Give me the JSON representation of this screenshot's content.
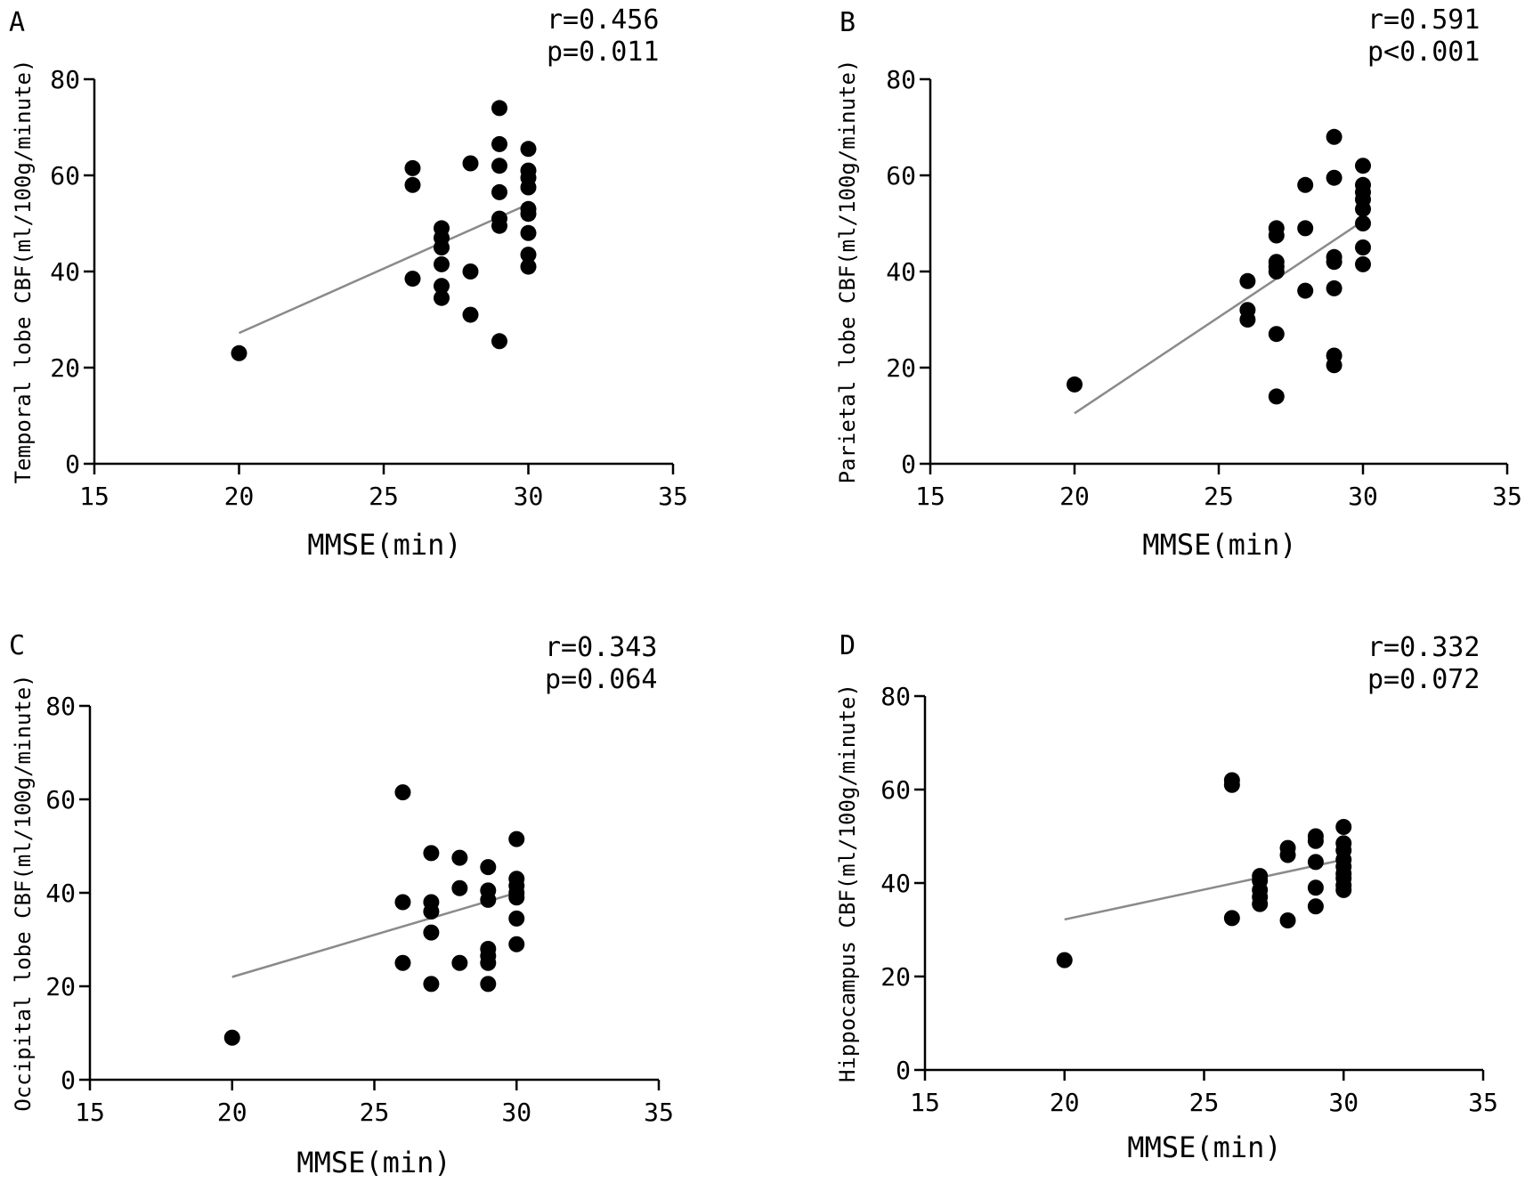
{
  "chart_data": [
    {
      "type": "scatter",
      "panel": "A",
      "stats": [
        "r=0.456",
        "p=0.011"
      ],
      "xlabel": "MMSE(min)",
      "ylabel": "Temporal lobe CBF(ml/100g/minute)",
      "xlim": [
        15,
        35
      ],
      "ylim": [
        0,
        80
      ],
      "xticks": [
        15,
        20,
        25,
        30,
        35
      ],
      "yticks": [
        0,
        20,
        40,
        60,
        80
      ],
      "fit": {
        "x": [
          20,
          30
        ],
        "y": [
          27.2,
          54
        ]
      },
      "points": [
        [
          20,
          23
        ],
        [
          26,
          61.5
        ],
        [
          26,
          58
        ],
        [
          26,
          38.5
        ],
        [
          27,
          49
        ],
        [
          27,
          47
        ],
        [
          27,
          45
        ],
        [
          27,
          41.5
        ],
        [
          27,
          37
        ],
        [
          27,
          34.5
        ],
        [
          28,
          62.5
        ],
        [
          28,
          40
        ],
        [
          28,
          31
        ],
        [
          29,
          74
        ],
        [
          29,
          66.5
        ],
        [
          29,
          62
        ],
        [
          29,
          56.5
        ],
        [
          29,
          51
        ],
        [
          29,
          49.5
        ],
        [
          29,
          25.5
        ],
        [
          30,
          65.5
        ],
        [
          30,
          61
        ],
        [
          30,
          59.5
        ],
        [
          30,
          57.5
        ],
        [
          30,
          53
        ],
        [
          30,
          52
        ],
        [
          30,
          48
        ],
        [
          30,
          43.5
        ],
        [
          30,
          41
        ]
      ]
    },
    {
      "type": "scatter",
      "panel": "B",
      "stats": [
        "r=0.591",
        "p<0.001"
      ],
      "xlabel": "MMSE(min)",
      "ylabel": "Parietal lobe CBF(ml/100g/minute)",
      "xlim": [
        15,
        35
      ],
      "ylim": [
        0,
        80
      ],
      "xticks": [
        15,
        20,
        25,
        30,
        35
      ],
      "yticks": [
        0,
        20,
        40,
        60,
        80
      ],
      "fit": {
        "x": [
          20,
          30
        ],
        "y": [
          10.5,
          50.5
        ]
      },
      "points": [
        [
          20,
          16.5
        ],
        [
          26,
          38
        ],
        [
          26,
          32
        ],
        [
          26,
          30
        ],
        [
          27,
          49
        ],
        [
          27,
          47.5
        ],
        [
          27,
          42
        ],
        [
          27,
          41
        ],
        [
          27,
          40
        ],
        [
          27,
          27
        ],
        [
          27,
          14
        ],
        [
          28,
          58
        ],
        [
          28,
          49
        ],
        [
          28,
          36
        ],
        [
          29,
          68
        ],
        [
          29,
          59.5
        ],
        [
          29,
          43
        ],
        [
          29,
          42
        ],
        [
          29,
          36.5
        ],
        [
          29,
          22.5
        ],
        [
          29,
          20.5
        ],
        [
          30,
          62
        ],
        [
          30,
          58
        ],
        [
          30,
          56.5
        ],
        [
          30,
          55
        ],
        [
          30,
          53
        ],
        [
          30,
          50
        ],
        [
          30,
          45
        ],
        [
          30,
          41.5
        ]
      ]
    },
    {
      "type": "scatter",
      "panel": "C",
      "stats": [
        "r=0.343",
        "p=0.064"
      ],
      "xlabel": "MMSE(min)",
      "ylabel": "Occipital lobe CBF(ml/100g/minute)",
      "xlim": [
        15,
        35
      ],
      "ylim": [
        0,
        80
      ],
      "xticks": [
        15,
        20,
        25,
        30,
        35
      ],
      "yticks": [
        0,
        20,
        40,
        60,
        80
      ],
      "fit": {
        "x": [
          20,
          30
        ],
        "y": [
          22,
          40
        ]
      },
      "points": [
        [
          20,
          9
        ],
        [
          26,
          61.5
        ],
        [
          26,
          38
        ],
        [
          26,
          25
        ],
        [
          27,
          48.5
        ],
        [
          27,
          38
        ],
        [
          27,
          36
        ],
        [
          27,
          31.5
        ],
        [
          27,
          20.5
        ],
        [
          28,
          47.5
        ],
        [
          28,
          41
        ],
        [
          28,
          25
        ],
        [
          29,
          45.5
        ],
        [
          29,
          40.5
        ],
        [
          29,
          38.5
        ],
        [
          29,
          28
        ],
        [
          29,
          26.5
        ],
        [
          29,
          25
        ],
        [
          29,
          20.5
        ],
        [
          30,
          51.5
        ],
        [
          30,
          43
        ],
        [
          30,
          41.5
        ],
        [
          30,
          40
        ],
        [
          30,
          39
        ],
        [
          30,
          34.5
        ],
        [
          30,
          29
        ]
      ]
    },
    {
      "type": "scatter",
      "panel": "D",
      "stats": [
        "r=0.332",
        "p=0.072"
      ],
      "xlabel": "MMSE(min)",
      "ylabel": "Hippocampus CBF(ml/100g/minute)",
      "xlim": [
        15,
        35
      ],
      "ylim": [
        0,
        80
      ],
      "xticks": [
        15,
        20,
        25,
        30,
        35
      ],
      "yticks": [
        0,
        20,
        40,
        60,
        80
      ],
      "fit": {
        "x": [
          20,
          30
        ],
        "y": [
          32.2,
          45
        ]
      },
      "points": [
        [
          20,
          23.5
        ],
        [
          26,
          62
        ],
        [
          26,
          61
        ],
        [
          26,
          32.5
        ],
        [
          27,
          41.5
        ],
        [
          27,
          40.5
        ],
        [
          27,
          38.5
        ],
        [
          27,
          37
        ],
        [
          27,
          35.5
        ],
        [
          28,
          47.5
        ],
        [
          28,
          46
        ],
        [
          28,
          32
        ],
        [
          29,
          50
        ],
        [
          29,
          49
        ],
        [
          29,
          44.5
        ],
        [
          29,
          39
        ],
        [
          29,
          35
        ],
        [
          30,
          52
        ],
        [
          30,
          48.5
        ],
        [
          30,
          47
        ],
        [
          30,
          45
        ],
        [
          30,
          43.5
        ],
        [
          30,
          42
        ],
        [
          30,
          41
        ],
        [
          30,
          39.5
        ],
        [
          30,
          38.5
        ]
      ]
    }
  ]
}
